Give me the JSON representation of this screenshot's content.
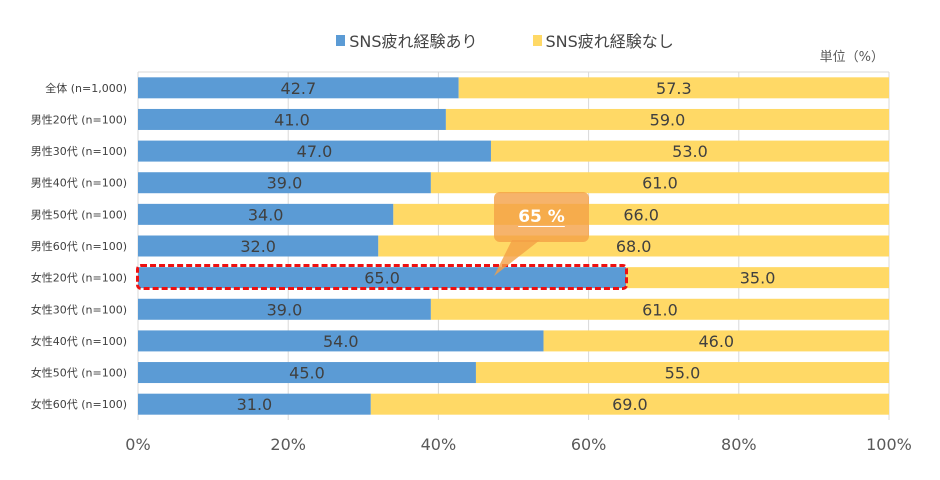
{
  "chart_data": {
    "type": "bar",
    "orientation": "horizontal",
    "stacked": true,
    "unit_label": "単位（%）",
    "categories": [
      "全体 (n=1,000)",
      "男性20代 (n=100)",
      "男性30代 (n=100)",
      "男性40代 (n=100)",
      "男性50代 (n=100)",
      "男性60代 (n=100)",
      "女性20代 (n=100)",
      "女性30代 (n=100)",
      "女性40代 (n=100)",
      "女性50代 (n=100)",
      "女性60代 (n=100)"
    ],
    "series": [
      {
        "name": "SNS疲れ経験あり",
        "color": "#5b9bd5",
        "values": [
          42.7,
          41.0,
          47.0,
          39.0,
          34.0,
          32.0,
          65.0,
          39.0,
          54.0,
          45.0,
          31.0
        ],
        "labels": [
          "42.7",
          "41.0",
          "47.0",
          "39.0",
          "34.0",
          "32.0",
          "65.0",
          "39.0",
          "54.0",
          "45.0",
          "31.0"
        ]
      },
      {
        "name": "SNS疲れ経験なし",
        "color": "#ffd966",
        "values": [
          57.3,
          59.0,
          53.0,
          61.0,
          66.0,
          68.0,
          35.0,
          61.0,
          46.0,
          55.0,
          69.0
        ],
        "labels": [
          "57.3",
          "59.0",
          "53.0",
          "61.0",
          "66.0",
          "68.0",
          "35.0",
          "61.0",
          "46.0",
          "55.0",
          "69.0"
        ]
      }
    ],
    "xlim": [
      0,
      100
    ],
    "xticks": [
      "0%",
      "20%",
      "40%",
      "60%",
      "80%",
      "100%"
    ],
    "grid": true,
    "legend": "top-center",
    "annotation": {
      "text": "65 %",
      "highlight_category_index": 6
    }
  }
}
